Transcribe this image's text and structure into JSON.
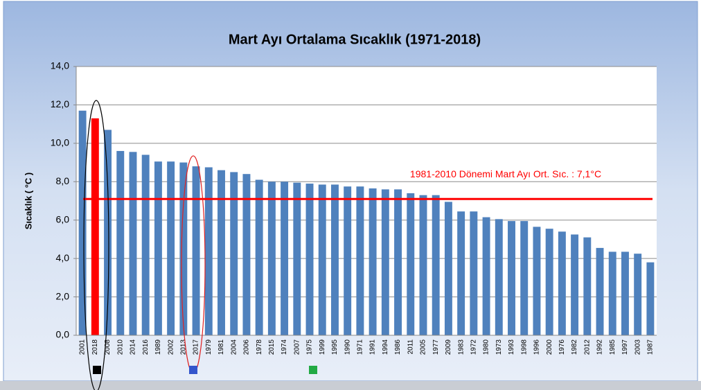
{
  "chart_data": {
    "type": "bar",
    "title": "Mart Ayı Ortalama Sıcaklık (1971-2018)",
    "y_label": "Sıcaklık ( °C )",
    "categories": [
      "2001",
      "2018",
      "2008",
      "2010",
      "2014",
      "2016",
      "1989",
      "2002",
      "2013",
      "2017",
      "1979",
      "1981",
      "2004",
      "2006",
      "1978",
      "2015",
      "1974",
      "2007",
      "1975",
      "1999",
      "1995",
      "1990",
      "1971",
      "1991",
      "1994",
      "1986",
      "2011",
      "2005",
      "1977",
      "2009",
      "1983",
      "1972",
      "1980",
      "1973",
      "1993",
      "1998",
      "1996",
      "2000",
      "1976",
      "1982",
      "2012",
      "1992",
      "1985",
      "1997",
      "2003",
      "1987"
    ],
    "values": [
      11.7,
      11.3,
      10.7,
      9.6,
      9.55,
      9.4,
      9.05,
      9.05,
      9.0,
      8.8,
      8.75,
      8.6,
      8.5,
      8.4,
      8.1,
      8.0,
      8.0,
      7.95,
      7.9,
      7.85,
      7.85,
      7.75,
      7.75,
      7.65,
      7.6,
      7.6,
      7.4,
      7.3,
      7.3,
      6.95,
      6.45,
      6.45,
      6.15,
      6.05,
      5.95,
      5.95,
      5.65,
      5.55,
      5.4,
      5.25,
      5.1,
      4.55,
      4.35,
      4.35,
      4.25,
      3.8
    ],
    "colors": [
      "#4f81bd",
      "#ff0000",
      "#4f81bd",
      "#4f81bd",
      "#4f81bd",
      "#4f81bd",
      "#4f81bd",
      "#4f81bd",
      "#4f81bd",
      "#4f81bd",
      "#4f81bd",
      "#4f81bd",
      "#4f81bd",
      "#4f81bd",
      "#4f81bd",
      "#4f81bd",
      "#4f81bd",
      "#4f81bd",
      "#4f81bd",
      "#4f81bd",
      "#4f81bd",
      "#4f81bd",
      "#4f81bd",
      "#4f81bd",
      "#4f81bd",
      "#4f81bd",
      "#4f81bd",
      "#4f81bd",
      "#4f81bd",
      "#4f81bd",
      "#4f81bd",
      "#4f81bd",
      "#4f81bd",
      "#4f81bd",
      "#4f81bd",
      "#4f81bd",
      "#4f81bd",
      "#4f81bd",
      "#4f81bd",
      "#4f81bd",
      "#4f81bd",
      "#4f81bd",
      "#4f81bd",
      "#4f81bd",
      "#4f81bd",
      "#4f81bd"
    ],
    "ylim": [
      0,
      14
    ],
    "yticks": [
      {
        "value": 0,
        "label": "0,0"
      },
      {
        "value": 2,
        "label": "2,0"
      },
      {
        "value": 4,
        "label": "4,0"
      },
      {
        "value": 6,
        "label": "6,0"
      },
      {
        "value": 8,
        "label": "8,0"
      },
      {
        "value": 10,
        "label": "10,0"
      },
      {
        "value": 12,
        "label": "12,0"
      },
      {
        "value": 14,
        "label": "14,0"
      }
    ],
    "grid": true,
    "reference_line": {
      "value": 7.1,
      "label": "1981-2010 Dönemi Mart Ayı Ort. Sıc. : 7,1°C",
      "color": "#ff0000"
    }
  }
}
